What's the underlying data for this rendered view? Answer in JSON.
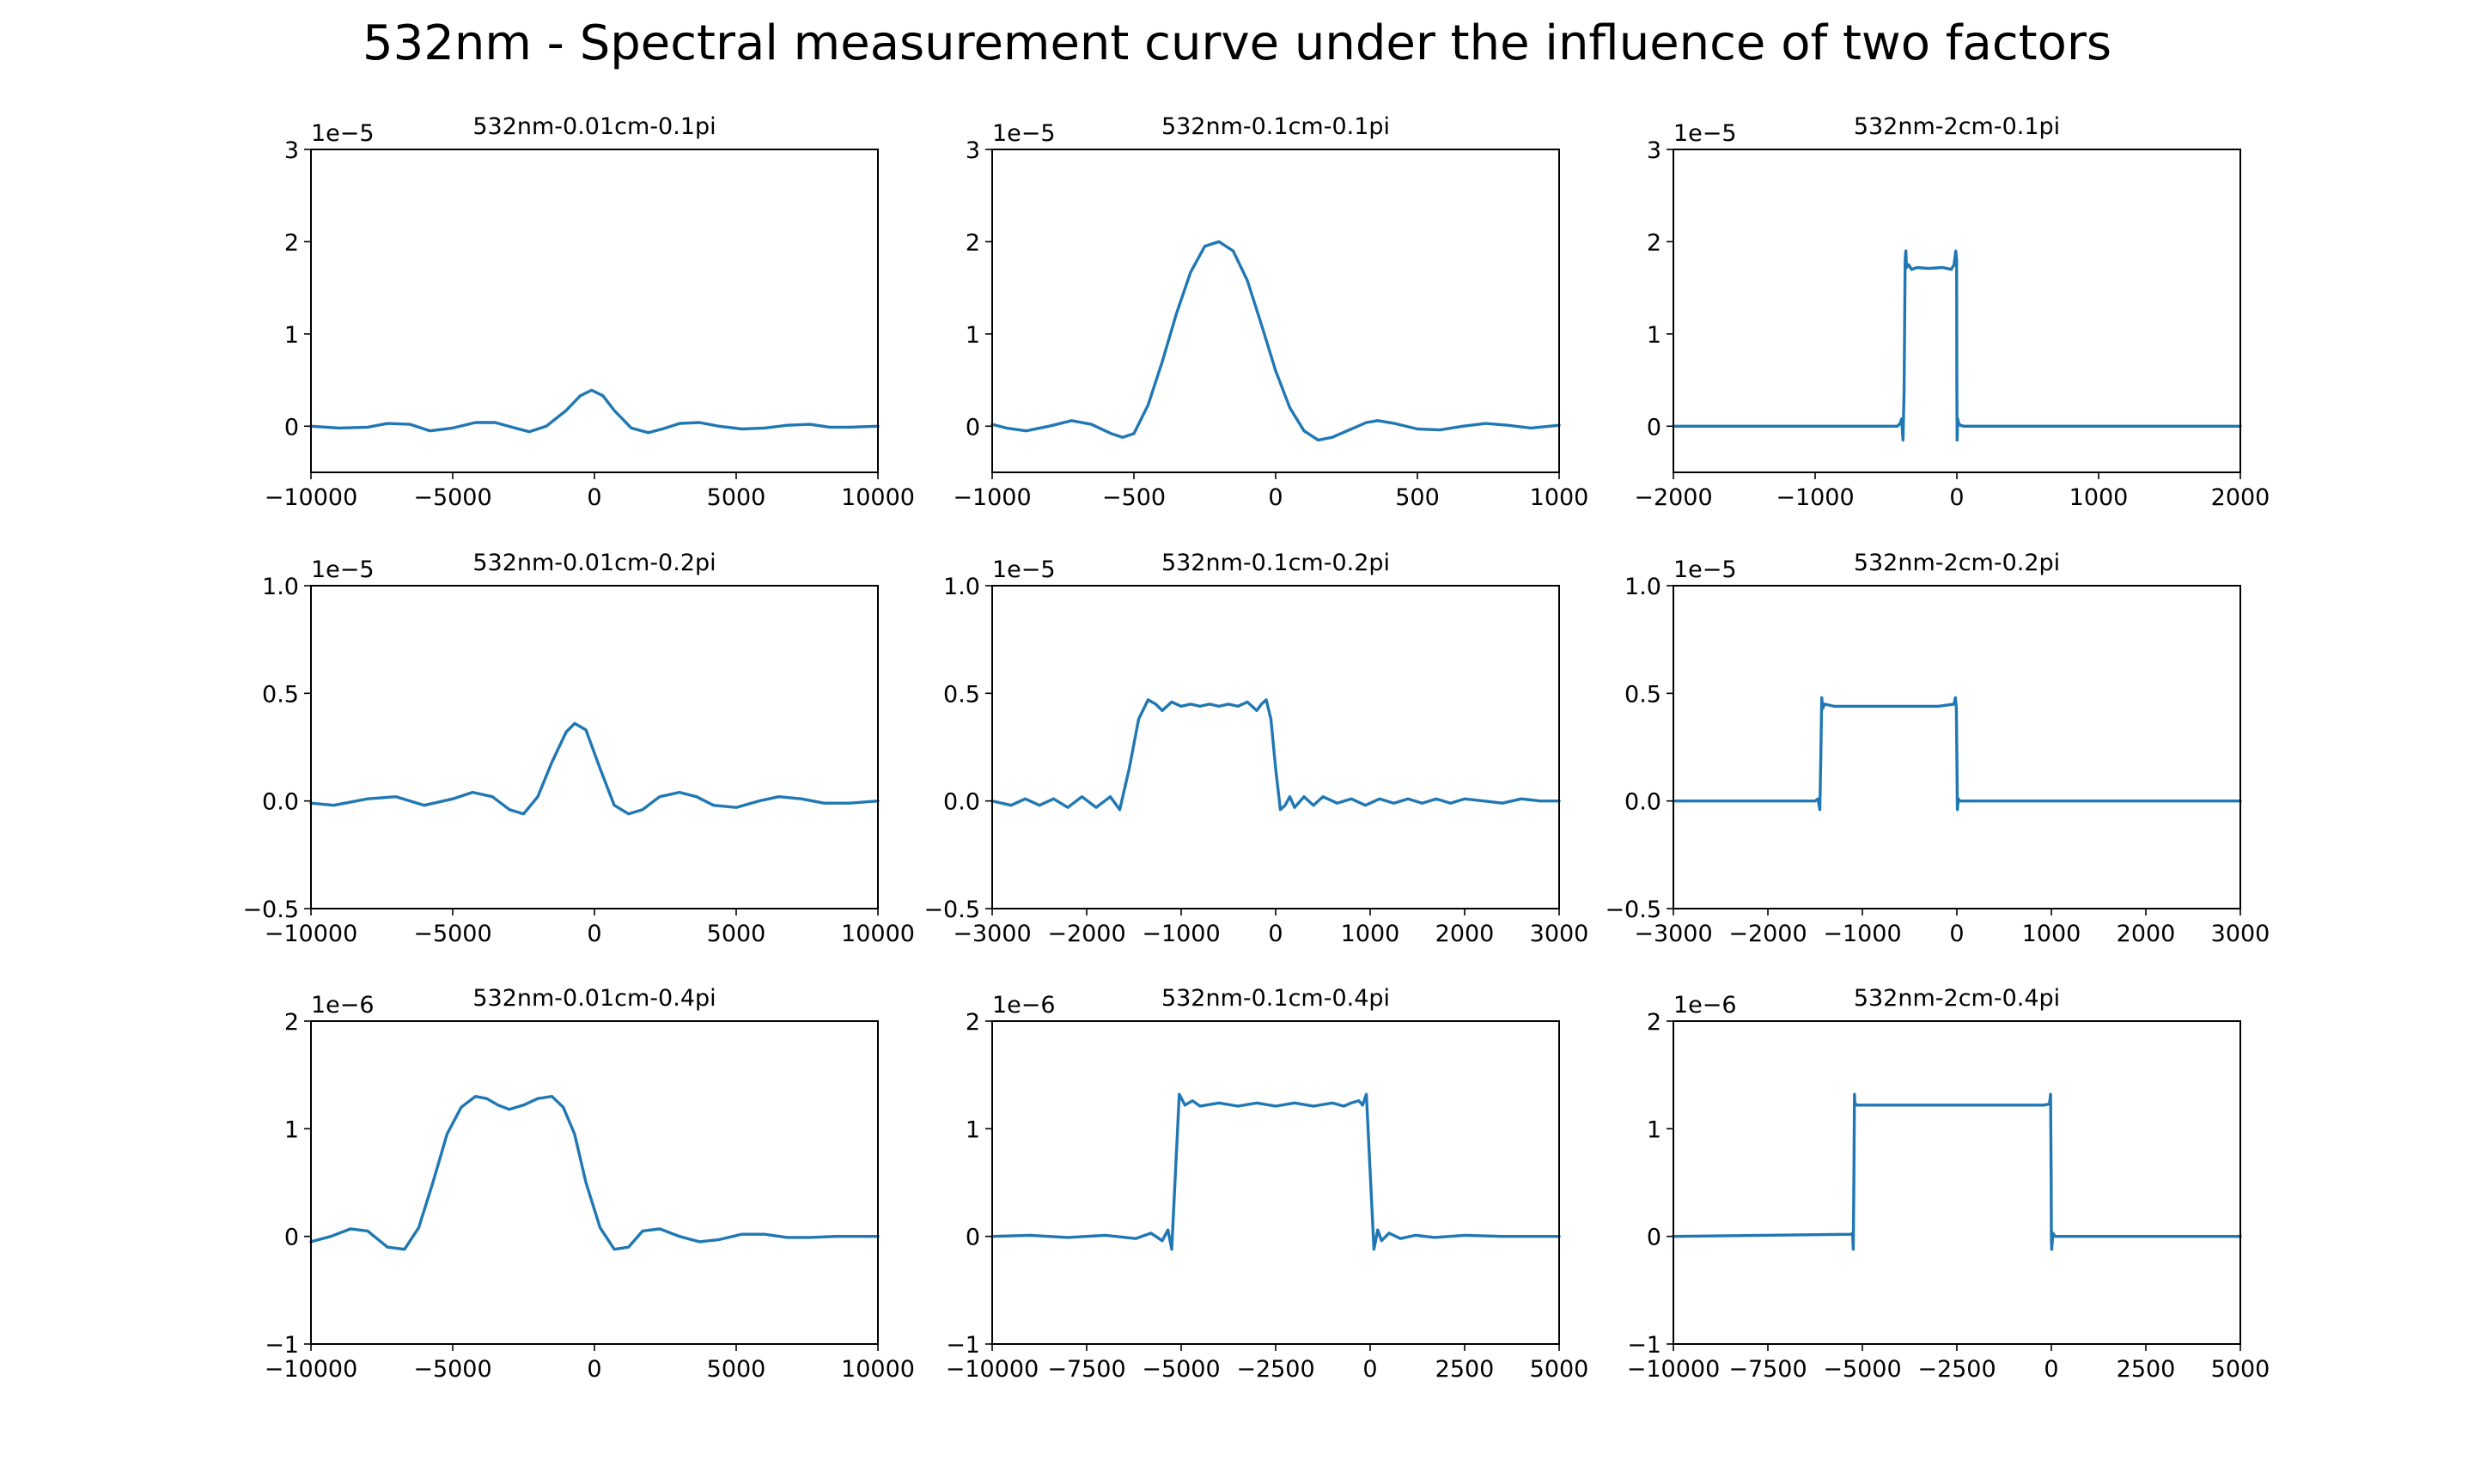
{
  "figure": {
    "title": "532nm - Spectral measurement curve under the influence of two factors",
    "line_color": "#1f77b4"
  },
  "chart_data": [
    {
      "type": "line",
      "title": "532nm-0.01cm-0.1pi",
      "offset_text": "1e−5",
      "xlim": [
        -10000,
        10000
      ],
      "ylim": [
        -0.5,
        3
      ],
      "xticks": [
        -10000,
        -5000,
        0,
        5000,
        10000
      ],
      "xticklabels": [
        "−10000",
        "−5000",
        "0",
        "5000",
        "10000"
      ],
      "yticks": [
        0,
        1,
        2,
        3
      ],
      "yticklabels": [
        "0",
        "1",
        "2",
        "3"
      ],
      "x": [
        -10000,
        -9000,
        -8000,
        -7300,
        -6500,
        -5800,
        -5000,
        -4200,
        -3500,
        -2800,
        -2300,
        -1700,
        -1000,
        -500,
        -100,
        300,
        700,
        1300,
        1900,
        2400,
        3000,
        3700,
        4400,
        5200,
        6000,
        6800,
        7600,
        8300,
        9000,
        10000
      ],
      "y": [
        0.0,
        -0.02,
        -0.01,
        0.03,
        0.02,
        -0.05,
        -0.02,
        0.04,
        0.04,
        -0.02,
        -0.06,
        0.0,
        0.17,
        0.33,
        0.39,
        0.33,
        0.17,
        -0.02,
        -0.07,
        -0.03,
        0.03,
        0.04,
        0.0,
        -0.03,
        -0.02,
        0.01,
        0.02,
        -0.01,
        -0.01,
        0.0
      ]
    },
    {
      "type": "line",
      "title": "532nm-0.1cm-0.1pi",
      "offset_text": "1e−5",
      "xlim": [
        -1000,
        1000
      ],
      "ylim": [
        -0.5,
        3
      ],
      "xticks": [
        -1000,
        -500,
        0,
        500,
        1000
      ],
      "xticklabels": [
        "−1000",
        "−500",
        "0",
        "500",
        "1000"
      ],
      "yticks": [
        0,
        1,
        2,
        3
      ],
      "yticklabels": [
        "0",
        "1",
        "2",
        "3"
      ],
      "x": [
        -1000,
        -950,
        -880,
        -800,
        -720,
        -650,
        -580,
        -540,
        -500,
        -450,
        -400,
        -350,
        -300,
        -250,
        -200,
        -150,
        -100,
        -50,
        0,
        50,
        100,
        150,
        200,
        260,
        320,
        360,
        420,
        500,
        580,
        660,
        740,
        820,
        900,
        1000
      ],
      "y": [
        0.02,
        -0.02,
        -0.05,
        0.0,
        0.06,
        0.02,
        -0.08,
        -0.12,
        -0.08,
        0.23,
        0.7,
        1.22,
        1.67,
        1.95,
        2.0,
        1.9,
        1.58,
        1.1,
        0.6,
        0.2,
        -0.05,
        -0.15,
        -0.12,
        -0.04,
        0.04,
        0.06,
        0.03,
        -0.03,
        -0.04,
        0.0,
        0.03,
        0.01,
        -0.02,
        0.01
      ]
    },
    {
      "type": "line",
      "title": "532nm-2cm-0.1pi",
      "offset_text": "1e−5",
      "xlim": [
        -2000,
        2000
      ],
      "ylim": [
        -0.5,
        3
      ],
      "xticks": [
        -2000,
        -1000,
        0,
        1000,
        2000
      ],
      "xticklabels": [
        "−2000",
        "−1000",
        "0",
        "1000",
        "2000"
      ],
      "yticks": [
        0,
        1,
        2,
        3
      ],
      "yticklabels": [
        "0",
        "1",
        "2",
        "3"
      ],
      "x": [
        -2000,
        -420,
        -400,
        -390,
        -380,
        -372,
        -365,
        -360,
        -355,
        -340,
        -320,
        -280,
        -200,
        -100,
        -40,
        -20,
        -8,
        -2,
        0,
        2,
        6,
        12,
        25,
        50,
        2000
      ],
      "y": [
        0.0,
        0.0,
        0.03,
        0.08,
        -0.15,
        0.4,
        1.8,
        1.9,
        1.72,
        1.75,
        1.7,
        1.72,
        1.71,
        1.72,
        1.7,
        1.75,
        1.9,
        1.8,
        0.4,
        -0.15,
        0.08,
        0.03,
        0.01,
        0.0,
        0.0
      ]
    },
    {
      "type": "line",
      "title": "532nm-0.01cm-0.2pi",
      "offset_text": "1e−5",
      "xlim": [
        -10000,
        10000
      ],
      "ylim": [
        -0.5,
        1.0
      ],
      "xticks": [
        -10000,
        -5000,
        0,
        5000,
        10000
      ],
      "xticklabels": [
        "−10000",
        "−5000",
        "0",
        "5000",
        "10000"
      ],
      "yticks": [
        -0.5,
        0.0,
        0.5,
        1.0
      ],
      "yticklabels": [
        "−0.5",
        "0.0",
        "0.5",
        "1.0"
      ],
      "x": [
        -10000,
        -9200,
        -8000,
        -7000,
        -6000,
        -5000,
        -4300,
        -3600,
        -3000,
        -2500,
        -2000,
        -1500,
        -1000,
        -700,
        -300,
        200,
        700,
        1200,
        1700,
        2300,
        3000,
        3600,
        4200,
        5000,
        5800,
        6500,
        7300,
        8100,
        9000,
        10000
      ],
      "y": [
        -0.01,
        -0.02,
        0.01,
        0.02,
        -0.02,
        0.01,
        0.04,
        0.02,
        -0.04,
        -0.06,
        0.02,
        0.18,
        0.32,
        0.36,
        0.33,
        0.15,
        -0.02,
        -0.06,
        -0.04,
        0.02,
        0.04,
        0.02,
        -0.02,
        -0.03,
        0.0,
        0.02,
        0.01,
        -0.01,
        -0.01,
        0.0
      ]
    },
    {
      "type": "line",
      "title": "532nm-0.1cm-0.2pi",
      "offset_text": "1e−5",
      "xlim": [
        -3000,
        3000
      ],
      "ylim": [
        -0.5,
        1.0
      ],
      "xticks": [
        -3000,
        -2000,
        -1000,
        0,
        1000,
        2000,
        3000
      ],
      "xticklabels": [
        "−3000",
        "−2000",
        "−1000",
        "0",
        "1000",
        "2000",
        "3000"
      ],
      "yticks": [
        -0.5,
        0.0,
        0.5,
        1.0
      ],
      "yticklabels": [
        "−0.5",
        "0.0",
        "0.5",
        "1.0"
      ],
      "x": [
        -3000,
        -2800,
        -2650,
        -2500,
        -2350,
        -2200,
        -2050,
        -1900,
        -1750,
        -1650,
        -1550,
        -1450,
        -1350,
        -1270,
        -1200,
        -1100,
        -1000,
        -900,
        -800,
        -700,
        -600,
        -500,
        -400,
        -300,
        -200,
        -150,
        -100,
        -50,
        0,
        50,
        100,
        150,
        200,
        300,
        400,
        500,
        650,
        800,
        950,
        1100,
        1250,
        1400,
        1550,
        1700,
        1850,
        2000,
        2200,
        2400,
        2600,
        2800,
        3000
      ],
      "y": [
        0.0,
        -0.02,
        0.01,
        -0.02,
        0.01,
        -0.03,
        0.02,
        -0.03,
        0.02,
        -0.04,
        0.15,
        0.38,
        0.47,
        0.45,
        0.42,
        0.46,
        0.44,
        0.45,
        0.44,
        0.45,
        0.44,
        0.45,
        0.44,
        0.46,
        0.42,
        0.45,
        0.47,
        0.38,
        0.15,
        -0.04,
        -0.02,
        0.02,
        -0.03,
        0.02,
        -0.02,
        0.02,
        -0.01,
        0.01,
        -0.02,
        0.01,
        -0.01,
        0.01,
        -0.01,
        0.01,
        -0.01,
        0.01,
        0.0,
        -0.01,
        0.01,
        0.0,
        0.0
      ]
    },
    {
      "type": "line",
      "title": "532nm-2cm-0.2pi",
      "offset_text": "1e−5",
      "xlim": [
        -3000,
        3000
      ],
      "ylim": [
        -0.5,
        1.0
      ],
      "xticks": [
        -3000,
        -2000,
        -1000,
        0,
        1000,
        2000,
        3000
      ],
      "xticklabels": [
        "−3000",
        "−2000",
        "−1000",
        "0",
        "1000",
        "2000",
        "3000"
      ],
      "yticks": [
        -0.5,
        0.0,
        0.5,
        1.0
      ],
      "yticklabels": [
        "−0.5",
        "0.0",
        "0.5",
        "1.0"
      ],
      "x": [
        -3000,
        -1500,
        -1470,
        -1450,
        -1440,
        -1430,
        -1420,
        -1400,
        -1300,
        -1000,
        -600,
        -200,
        -30,
        -15,
        -5,
        0,
        5,
        15,
        30,
        60,
        3000
      ],
      "y": [
        0.0,
        0.0,
        0.01,
        -0.04,
        0.2,
        0.48,
        0.43,
        0.45,
        0.44,
        0.44,
        0.44,
        0.44,
        0.45,
        0.48,
        0.43,
        0.2,
        -0.04,
        0.01,
        0.0,
        0.0,
        0.0
      ]
    },
    {
      "type": "line",
      "title": "532nm-0.01cm-0.4pi",
      "offset_text": "1e−6",
      "xlim": [
        -10000,
        10000
      ],
      "ylim": [
        -1,
        2
      ],
      "xticks": [
        -10000,
        -5000,
        0,
        5000,
        10000
      ],
      "xticklabels": [
        "−10000",
        "−5000",
        "0",
        "5000",
        "10000"
      ],
      "yticks": [
        -1,
        0,
        1,
        2
      ],
      "yticklabels": [
        "−1",
        "0",
        "1",
        "2"
      ],
      "x": [
        -10000,
        -9300,
        -8600,
        -8000,
        -7300,
        -6700,
        -6200,
        -5700,
        -5200,
        -4700,
        -4200,
        -3800,
        -3400,
        -3000,
        -2500,
        -2000,
        -1500,
        -1100,
        -700,
        -300,
        200,
        700,
        1200,
        1700,
        2300,
        3000,
        3700,
        4400,
        5200,
        6000,
        6800,
        7600,
        8500,
        9300,
        10000
      ],
      "y": [
        -0.05,
        0.0,
        0.07,
        0.05,
        -0.1,
        -0.12,
        0.08,
        0.5,
        0.95,
        1.2,
        1.3,
        1.28,
        1.22,
        1.18,
        1.22,
        1.28,
        1.3,
        1.2,
        0.95,
        0.5,
        0.08,
        -0.12,
        -0.1,
        0.05,
        0.07,
        0.0,
        -0.05,
        -0.03,
        0.02,
        0.02,
        -0.01,
        -0.01,
        0.0,
        0.0,
        0.0
      ]
    },
    {
      "type": "line",
      "title": "532nm-0.1cm-0.4pi",
      "offset_text": "1e−6",
      "xlim": [
        -10000,
        5000
      ],
      "ylim": [
        -1,
        2
      ],
      "xticks": [
        -10000,
        -7500,
        -5000,
        -2500,
        0,
        2500,
        5000
      ],
      "xticklabels": [
        "−10000",
        "−7500",
        "−5000",
        "−2500",
        "0",
        "2500",
        "5000"
      ],
      "yticks": [
        -1,
        0,
        1,
        2
      ],
      "yticklabels": [
        "−1",
        "0",
        "1",
        "2"
      ],
      "x": [
        -10000,
        -9000,
        -8000,
        -7000,
        -6200,
        -5800,
        -5500,
        -5350,
        -5250,
        -5150,
        -5050,
        -4900,
        -4700,
        -4500,
        -4000,
        -3500,
        -3000,
        -2500,
        -2000,
        -1500,
        -1000,
        -700,
        -500,
        -300,
        -200,
        -100,
        0,
        100,
        200,
        300,
        500,
        800,
        1200,
        1700,
        2500,
        3500,
        5000
      ],
      "y": [
        0.0,
        0.01,
        -0.01,
        0.01,
        -0.02,
        0.03,
        -0.04,
        0.06,
        -0.12,
        0.6,
        1.32,
        1.22,
        1.26,
        1.21,
        1.24,
        1.21,
        1.24,
        1.21,
        1.24,
        1.21,
        1.24,
        1.21,
        1.24,
        1.26,
        1.22,
        1.32,
        0.6,
        -0.12,
        0.06,
        -0.04,
        0.03,
        -0.02,
        0.01,
        -0.01,
        0.01,
        0.0,
        0.0
      ]
    },
    {
      "type": "line",
      "title": "532nm-2cm-0.4pi",
      "offset_text": "1e−6",
      "xlim": [
        -10000,
        5000
      ],
      "ylim": [
        -1,
        2
      ],
      "xticks": [
        -10000,
        -7500,
        -5000,
        -2500,
        0,
        2500,
        5000
      ],
      "xticklabels": [
        "−10000",
        "−7500",
        "−5000",
        "−2500",
        "0",
        "2500",
        "5000"
      ],
      "yticks": [
        -1,
        0,
        1,
        2
      ],
      "yticklabels": [
        "−1",
        "0",
        "1",
        "2"
      ],
      "x": [
        -10000,
        -5300,
        -5260,
        -5240,
        -5225,
        -5210,
        -5200,
        -5150,
        -4500,
        -3000,
        -1500,
        -200,
        -50,
        -20,
        -5,
        0,
        10,
        40,
        100,
        5000
      ],
      "y": [
        0.0,
        0.02,
        0.03,
        -0.12,
        0.5,
        1.32,
        1.24,
        1.22,
        1.22,
        1.22,
        1.22,
        1.22,
        1.23,
        1.32,
        0.5,
        0.0,
        -0.12,
        0.03,
        0.0,
        0.0
      ]
    }
  ]
}
